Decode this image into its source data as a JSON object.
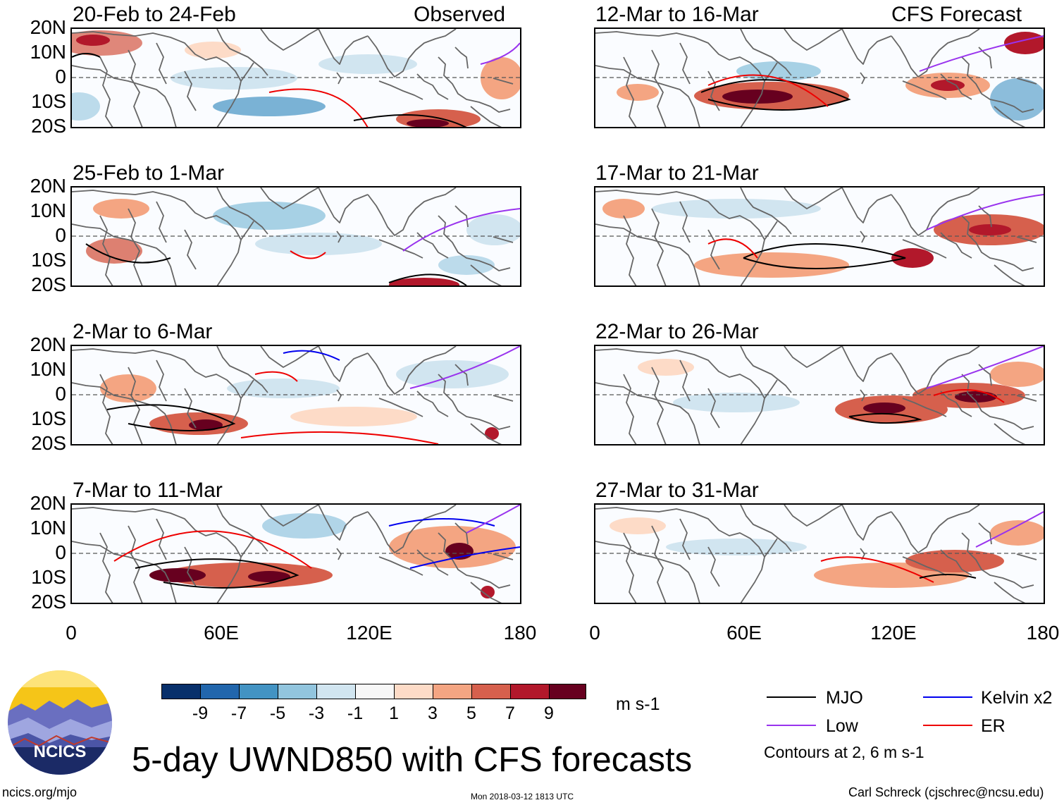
{
  "header": {
    "observed_label": "Observed",
    "forecast_label": "CFS Forecast"
  },
  "panels": [
    {
      "title": "20-Feb to 24-Feb",
      "kind": "observed"
    },
    {
      "title": "25-Feb to 1-Mar",
      "kind": "observed"
    },
    {
      "title": "2-Mar to 6-Mar",
      "kind": "observed"
    },
    {
      "title": "7-Mar to 11-Mar",
      "kind": "observed"
    },
    {
      "title": "12-Mar to 16-Mar",
      "kind": "forecast"
    },
    {
      "title": "17-Mar to 21-Mar",
      "kind": "forecast"
    },
    {
      "title": "22-Mar to 26-Mar",
      "kind": "forecast"
    },
    {
      "title": "27-Mar to 31-Mar",
      "kind": "forecast"
    }
  ],
  "axes": {
    "lat_labels": [
      "20N",
      "10N",
      "0",
      "10S",
      "20S"
    ],
    "lon_labels": [
      "0",
      "60E",
      "120E",
      "180"
    ]
  },
  "colorbar": {
    "colors": [
      "#08306b",
      "#2166ac",
      "#4393c3",
      "#92c5de",
      "#d1e5f0",
      "#f7f7f7",
      "#fddbc7",
      "#f4a582",
      "#d6604d",
      "#b2182b",
      "#67001f"
    ],
    "ticks": [
      "-9",
      "-7",
      "-5",
      "-3",
      "-1",
      "1",
      "3",
      "5",
      "7",
      "9"
    ],
    "units": "m s-1"
  },
  "legend": {
    "items": [
      {
        "label": "MJO",
        "color": "#000000"
      },
      {
        "label": "Kelvin x2",
        "color": "#0000ee"
      },
      {
        "label": "Low",
        "color": "#9933ee"
      },
      {
        "label": "ER",
        "color": "#ee0000"
      }
    ],
    "note": "Contours at 2, 6 m s-1"
  },
  "logo": {
    "text": "NCICS"
  },
  "title": "5-day UWND850 with CFS forecasts",
  "footer": {
    "left": "ncics.org/mjo",
    "center": "Mon 2018-03-12 1813 UTC",
    "right": "Carl Schreck (cjschrec@ncsu.edu)"
  }
}
